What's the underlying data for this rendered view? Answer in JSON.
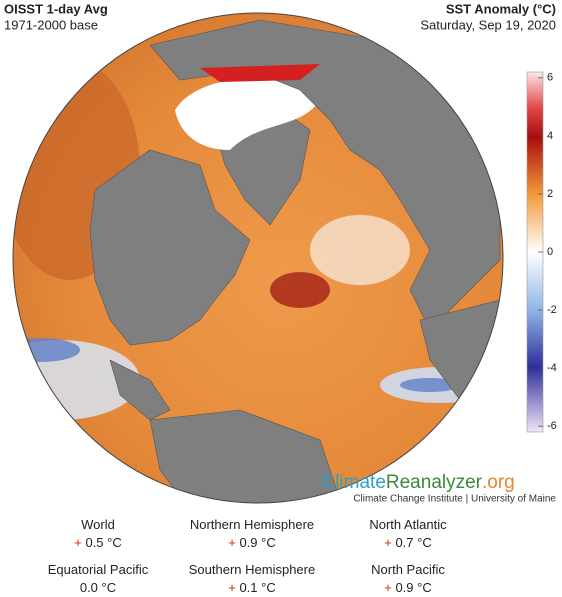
{
  "header": {
    "title": "OISST 1-day Avg",
    "subtitle": "1971-2000 base",
    "legend_title": "SST Anomaly (°C)",
    "date": "Saturday, Sep 19, 2020"
  },
  "colorbar": {
    "range": [
      -6.2,
      6.2
    ],
    "ticks": [
      6,
      4,
      2,
      0,
      -2,
      -4,
      -6
    ]
  },
  "branding": {
    "name_a": "Climate",
    "name_b": "Reanalyzer",
    "name_c": ".org",
    "credit": "Climate Change Institute | University of Maine"
  },
  "stats": [
    {
      "label": "World",
      "sign": "+",
      "value": "0.5",
      "unit": "°C"
    },
    {
      "label": "Northern Hemisphere",
      "sign": "+",
      "value": "0.9",
      "unit": "°C"
    },
    {
      "label": "North Atlantic",
      "sign": "+",
      "value": "0.7",
      "unit": "°C"
    },
    {
      "label": "Equatorial Pacific",
      "value": "0.0",
      "unit": "°C"
    },
    {
      "label": "Southern Hemisphere",
      "sign": "+",
      "value": "0.1",
      "unit": "°C"
    },
    {
      "label": "North Pacific",
      "sign": "+",
      "value": "0.9",
      "unit": "°C"
    }
  ]
}
